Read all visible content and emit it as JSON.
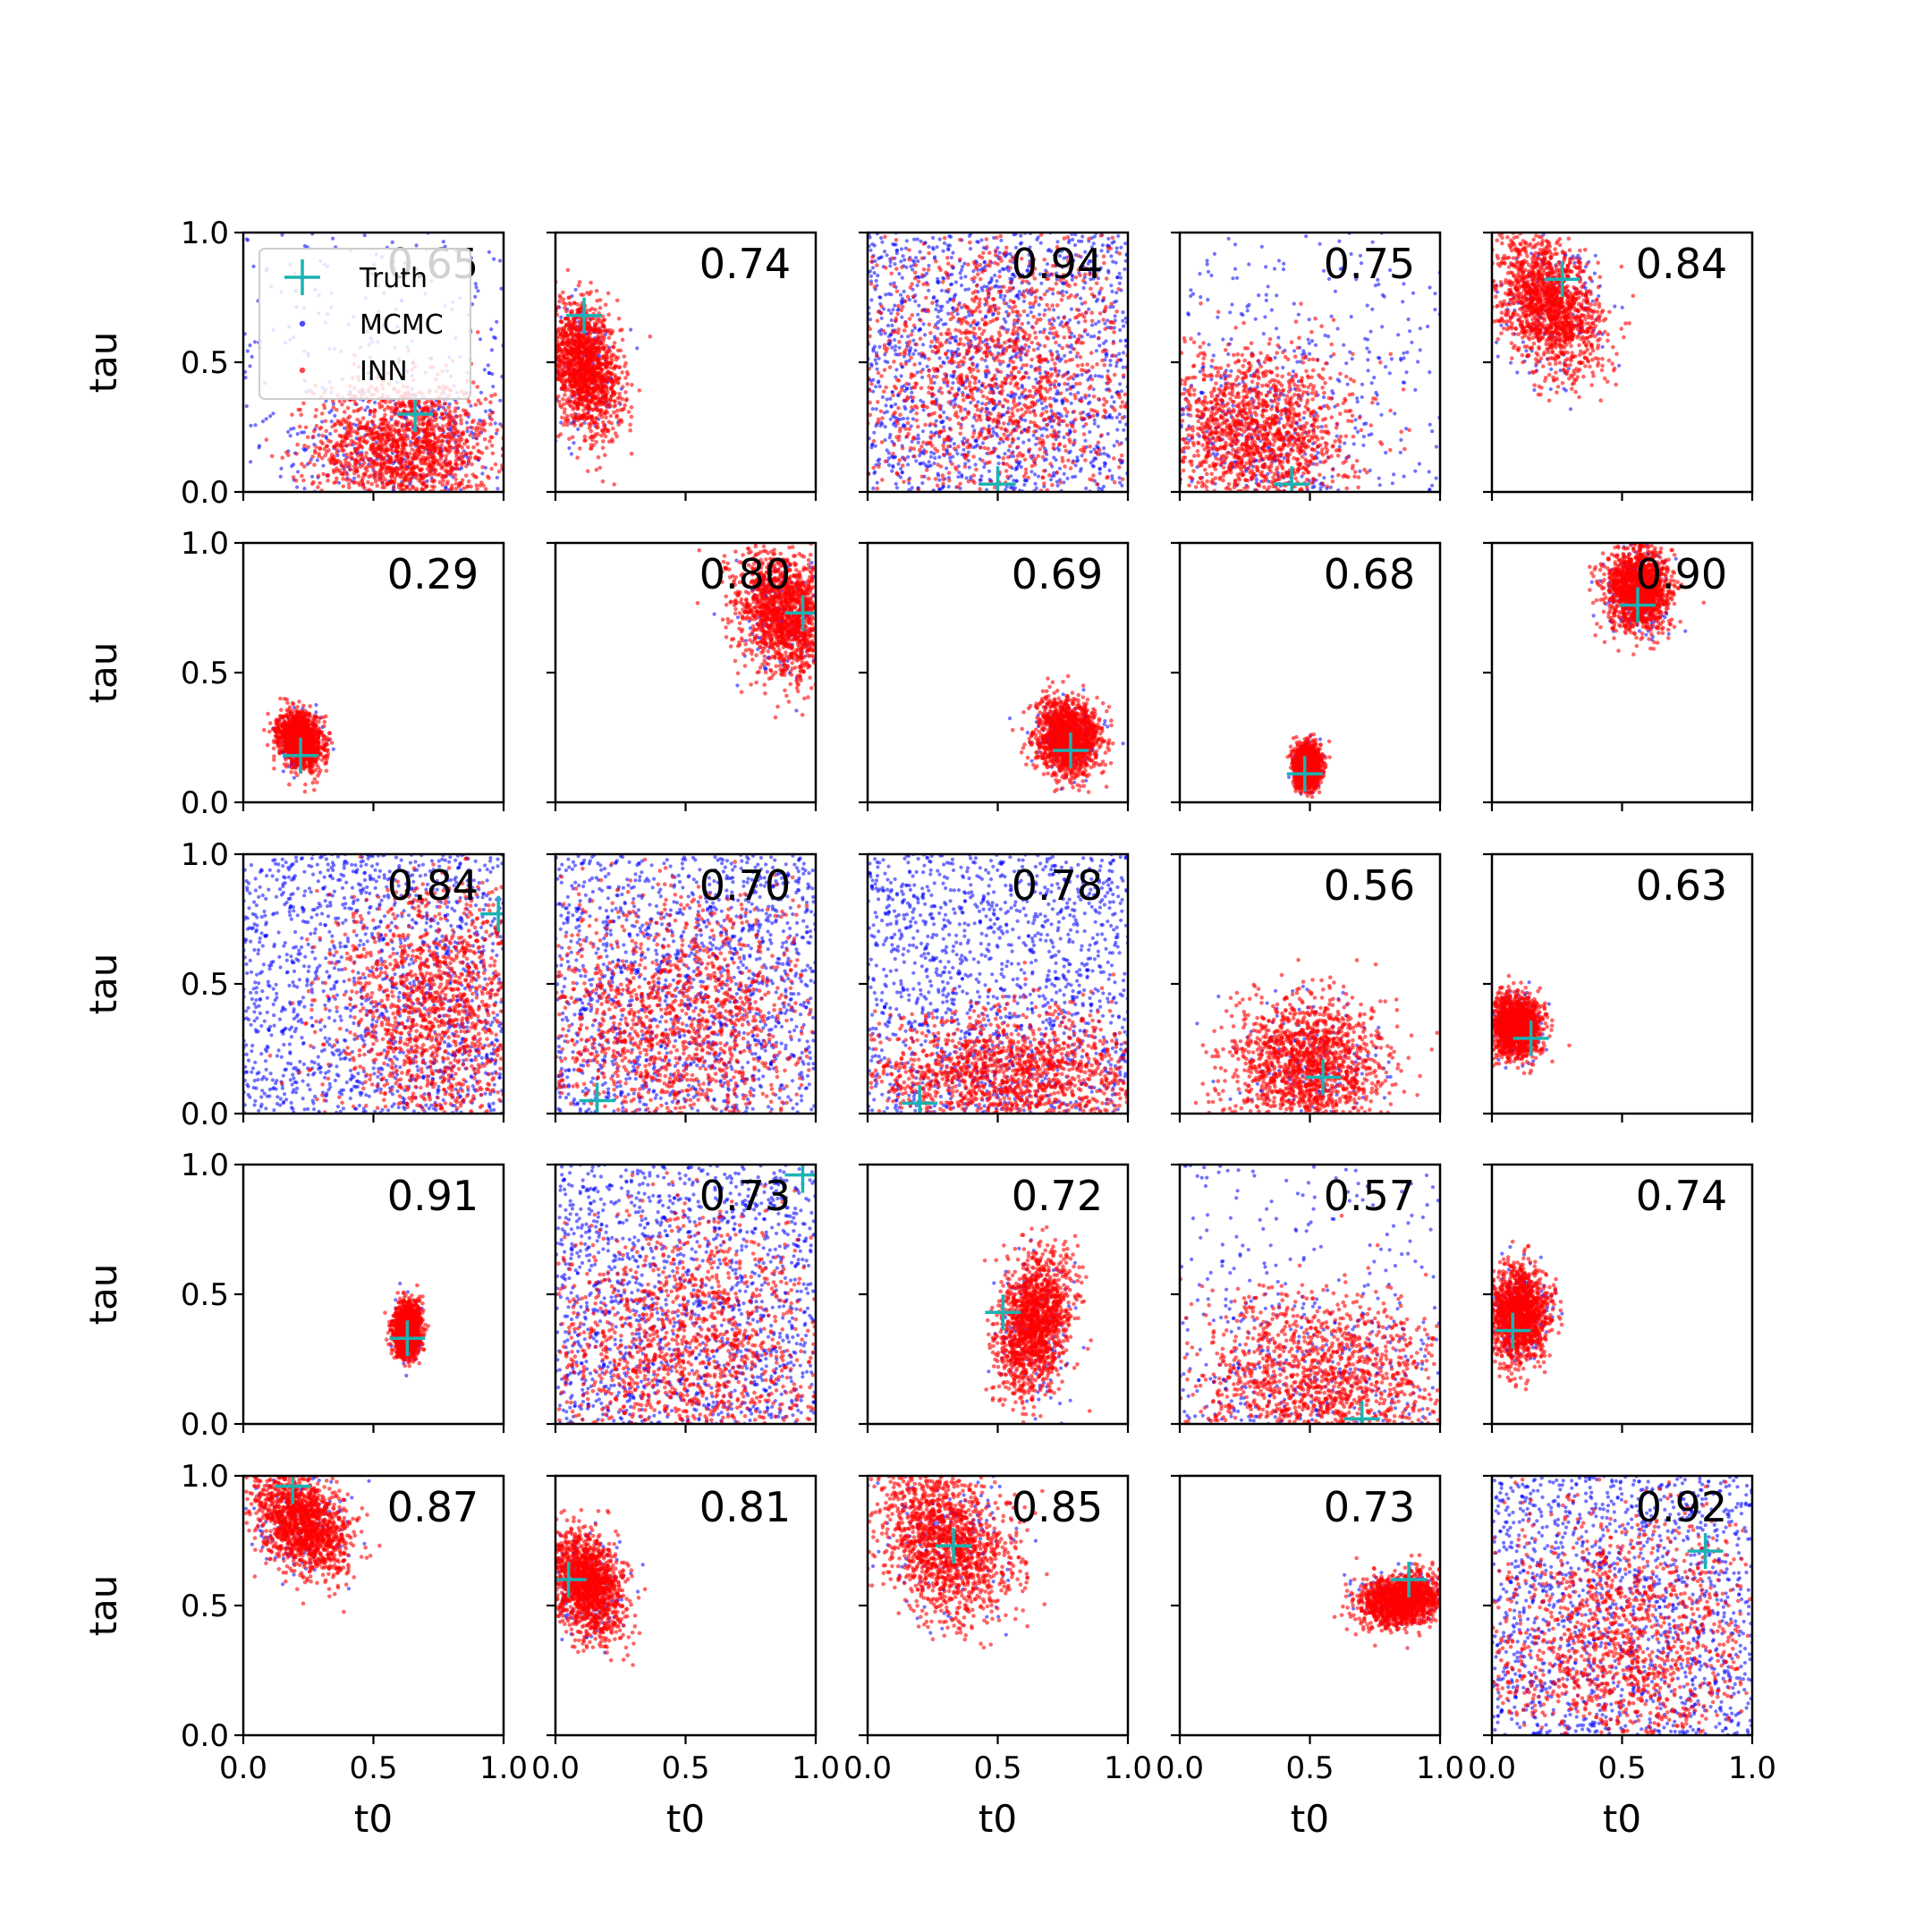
{
  "chart_data": {
    "type": "scatter",
    "grid": false,
    "xlabel": "t0",
    "ylabel": "tau",
    "xlim": [
      0,
      1
    ],
    "ylim": [
      0,
      1
    ],
    "xticks": [
      "0.0",
      "0.5",
      "1.0"
    ],
    "yticks": [
      "0.0",
      "0.5",
      "1.0"
    ],
    "colors": {
      "truth": "#1ab3b3",
      "mcmc": "#0000ff",
      "inn": "#ff0000"
    },
    "legend": {
      "placement": "upper-left of first panel",
      "entries": [
        {
          "label": "Truth",
          "marker": "plus",
          "color": "#1ab3b3"
        },
        {
          "label": "MCMC",
          "marker": "dot",
          "color": "#0000ff"
        },
        {
          "label": "INN",
          "marker": "dot",
          "color": "#ff0000"
        }
      ]
    },
    "panels": [
      {
        "row": 0,
        "col": 0,
        "score": "0.65",
        "truth": [
          0.66,
          0.3
        ],
        "inn": {
          "cx": 0.62,
          "cy": 0.17,
          "sx": 0.17,
          "sy": 0.13,
          "rho": 0.0
        },
        "mcmc_spread": "wide"
      },
      {
        "row": 0,
        "col": 1,
        "score": "0.74",
        "truth": [
          0.11,
          0.68
        ],
        "inn": {
          "cx": 0.11,
          "cy": 0.48,
          "sx": 0.07,
          "sy": 0.12,
          "rho": -0.3
        },
        "mcmc_spread": "none"
      },
      {
        "row": 0,
        "col": 2,
        "score": "0.94",
        "truth": [
          0.5,
          0.03
        ],
        "inn": {
          "cx": 0.5,
          "cy": 0.45,
          "sx": 0.3,
          "sy": 0.3,
          "rho": 0.0
        },
        "mcmc_spread": "uniform"
      },
      {
        "row": 0,
        "col": 3,
        "score": "0.75",
        "truth": [
          0.43,
          0.03
        ],
        "inn": {
          "cx": 0.3,
          "cy": 0.22,
          "sx": 0.18,
          "sy": 0.16,
          "rho": 0.0
        },
        "mcmc_spread": "wide"
      },
      {
        "row": 0,
        "col": 4,
        "score": "0.84",
        "truth": [
          0.27,
          0.82
        ],
        "inn": {
          "cx": 0.22,
          "cy": 0.72,
          "sx": 0.1,
          "sy": 0.13,
          "rho": -0.4
        },
        "mcmc_spread": "none"
      },
      {
        "row": 1,
        "col": 0,
        "score": "0.29",
        "truth": [
          0.22,
          0.18
        ],
        "inn": {
          "cx": 0.22,
          "cy": 0.24,
          "sx": 0.04,
          "sy": 0.05,
          "rho": -0.2
        },
        "mcmc_spread": "none"
      },
      {
        "row": 1,
        "col": 1,
        "score": "0.80",
        "truth": [
          0.95,
          0.73
        ],
        "inn": {
          "cx": 0.88,
          "cy": 0.72,
          "sx": 0.09,
          "sy": 0.12,
          "rho": -0.2
        },
        "mcmc_spread": "none"
      },
      {
        "row": 1,
        "col": 2,
        "score": "0.69",
        "truth": [
          0.78,
          0.2
        ],
        "inn": {
          "cx": 0.77,
          "cy": 0.25,
          "sx": 0.06,
          "sy": 0.07,
          "rho": 0.0
        },
        "mcmc_spread": "none"
      },
      {
        "row": 1,
        "col": 3,
        "score": "0.68",
        "truth": [
          0.48,
          0.11
        ],
        "inn": {
          "cx": 0.49,
          "cy": 0.14,
          "sx": 0.025,
          "sy": 0.04,
          "rho": 0.0
        },
        "mcmc_spread": "none"
      },
      {
        "row": 1,
        "col": 4,
        "score": "0.90",
        "truth": [
          0.56,
          0.76
        ],
        "inn": {
          "cx": 0.56,
          "cy": 0.82,
          "sx": 0.06,
          "sy": 0.08,
          "rho": 0.0
        },
        "mcmc_spread": "none"
      },
      {
        "row": 2,
        "col": 0,
        "score": "0.84",
        "truth": [
          0.98,
          0.77
        ],
        "inn": {
          "cx": 0.75,
          "cy": 0.4,
          "sx": 0.2,
          "sy": 0.25,
          "rho": 0.0
        },
        "mcmc_spread": "uniform"
      },
      {
        "row": 2,
        "col": 1,
        "score": "0.70",
        "truth": [
          0.16,
          0.05
        ],
        "inn": {
          "cx": 0.45,
          "cy": 0.35,
          "sx": 0.28,
          "sy": 0.25,
          "rho": 0.0
        },
        "mcmc_spread": "uniform"
      },
      {
        "row": 2,
        "col": 2,
        "score": "0.78",
        "truth": [
          0.2,
          0.04
        ],
        "inn": {
          "cx": 0.55,
          "cy": 0.15,
          "sx": 0.28,
          "sy": 0.12,
          "rho": 0.0
        },
        "mcmc_spread": "uniform"
      },
      {
        "row": 2,
        "col": 3,
        "score": "0.56",
        "truth": [
          0.55,
          0.14
        ],
        "inn": {
          "cx": 0.5,
          "cy": 0.18,
          "sx": 0.15,
          "sy": 0.13,
          "rho": 0.0
        },
        "mcmc_spread": "none"
      },
      {
        "row": 2,
        "col": 4,
        "score": "0.63",
        "truth": [
          0.15,
          0.29
        ],
        "inn": {
          "cx": 0.09,
          "cy": 0.34,
          "sx": 0.05,
          "sy": 0.06,
          "rho": 0.0
        },
        "mcmc_spread": "none"
      },
      {
        "row": 3,
        "col": 0,
        "score": "0.91",
        "truth": [
          0.63,
          0.33
        ],
        "inn": {
          "cx": 0.63,
          "cy": 0.36,
          "sx": 0.025,
          "sy": 0.05,
          "rho": 0.0
        },
        "mcmc_spread": "none"
      },
      {
        "row": 3,
        "col": 1,
        "score": "0.73",
        "truth": [
          0.95,
          0.96
        ],
        "inn": {
          "cx": 0.5,
          "cy": 0.3,
          "sx": 0.28,
          "sy": 0.25,
          "rho": 0.0
        },
        "mcmc_spread": "uniform"
      },
      {
        "row": 3,
        "col": 2,
        "score": "0.72",
        "truth": [
          0.52,
          0.43
        ],
        "inn": {
          "cx": 0.64,
          "cy": 0.38,
          "sx": 0.07,
          "sy": 0.13,
          "rho": 0.3
        },
        "mcmc_spread": "none"
      },
      {
        "row": 3,
        "col": 3,
        "score": "0.57",
        "truth": [
          0.7,
          0.02
        ],
        "inn": {
          "cx": 0.55,
          "cy": 0.15,
          "sx": 0.25,
          "sy": 0.18,
          "rho": 0.0
        },
        "mcmc_spread": "wide"
      },
      {
        "row": 3,
        "col": 4,
        "score": "0.74",
        "truth": [
          0.08,
          0.36
        ],
        "inn": {
          "cx": 0.1,
          "cy": 0.42,
          "sx": 0.06,
          "sy": 0.09,
          "rho": 0.0
        },
        "mcmc_spread": "none"
      },
      {
        "row": 4,
        "col": 0,
        "score": "0.87",
        "truth": [
          0.19,
          0.96
        ],
        "inn": {
          "cx": 0.22,
          "cy": 0.82,
          "sx": 0.09,
          "sy": 0.1,
          "rho": -0.4
        },
        "mcmc_spread": "none"
      },
      {
        "row": 4,
        "col": 1,
        "score": "0.81",
        "truth": [
          0.05,
          0.6
        ],
        "inn": {
          "cx": 0.12,
          "cy": 0.58,
          "sx": 0.07,
          "sy": 0.1,
          "rho": -0.3
        },
        "mcmc_spread": "none"
      },
      {
        "row": 4,
        "col": 2,
        "score": "0.85",
        "truth": [
          0.33,
          0.73
        ],
        "inn": {
          "cx": 0.3,
          "cy": 0.74,
          "sx": 0.13,
          "sy": 0.14,
          "rho": -0.3
        },
        "mcmc_spread": "none"
      },
      {
        "row": 4,
        "col": 3,
        "score": "0.73",
        "truth": [
          0.88,
          0.6
        ],
        "inn": {
          "cx": 0.85,
          "cy": 0.52,
          "sx": 0.08,
          "sy": 0.05,
          "rho": 0.2
        },
        "mcmc_spread": "none"
      },
      {
        "row": 4,
        "col": 4,
        "score": "0.92",
        "truth": [
          0.82,
          0.71
        ],
        "inn": {
          "cx": 0.5,
          "cy": 0.35,
          "sx": 0.28,
          "sy": 0.25,
          "rho": 0.0
        },
        "mcmc_spread": "uniform"
      }
    ]
  }
}
